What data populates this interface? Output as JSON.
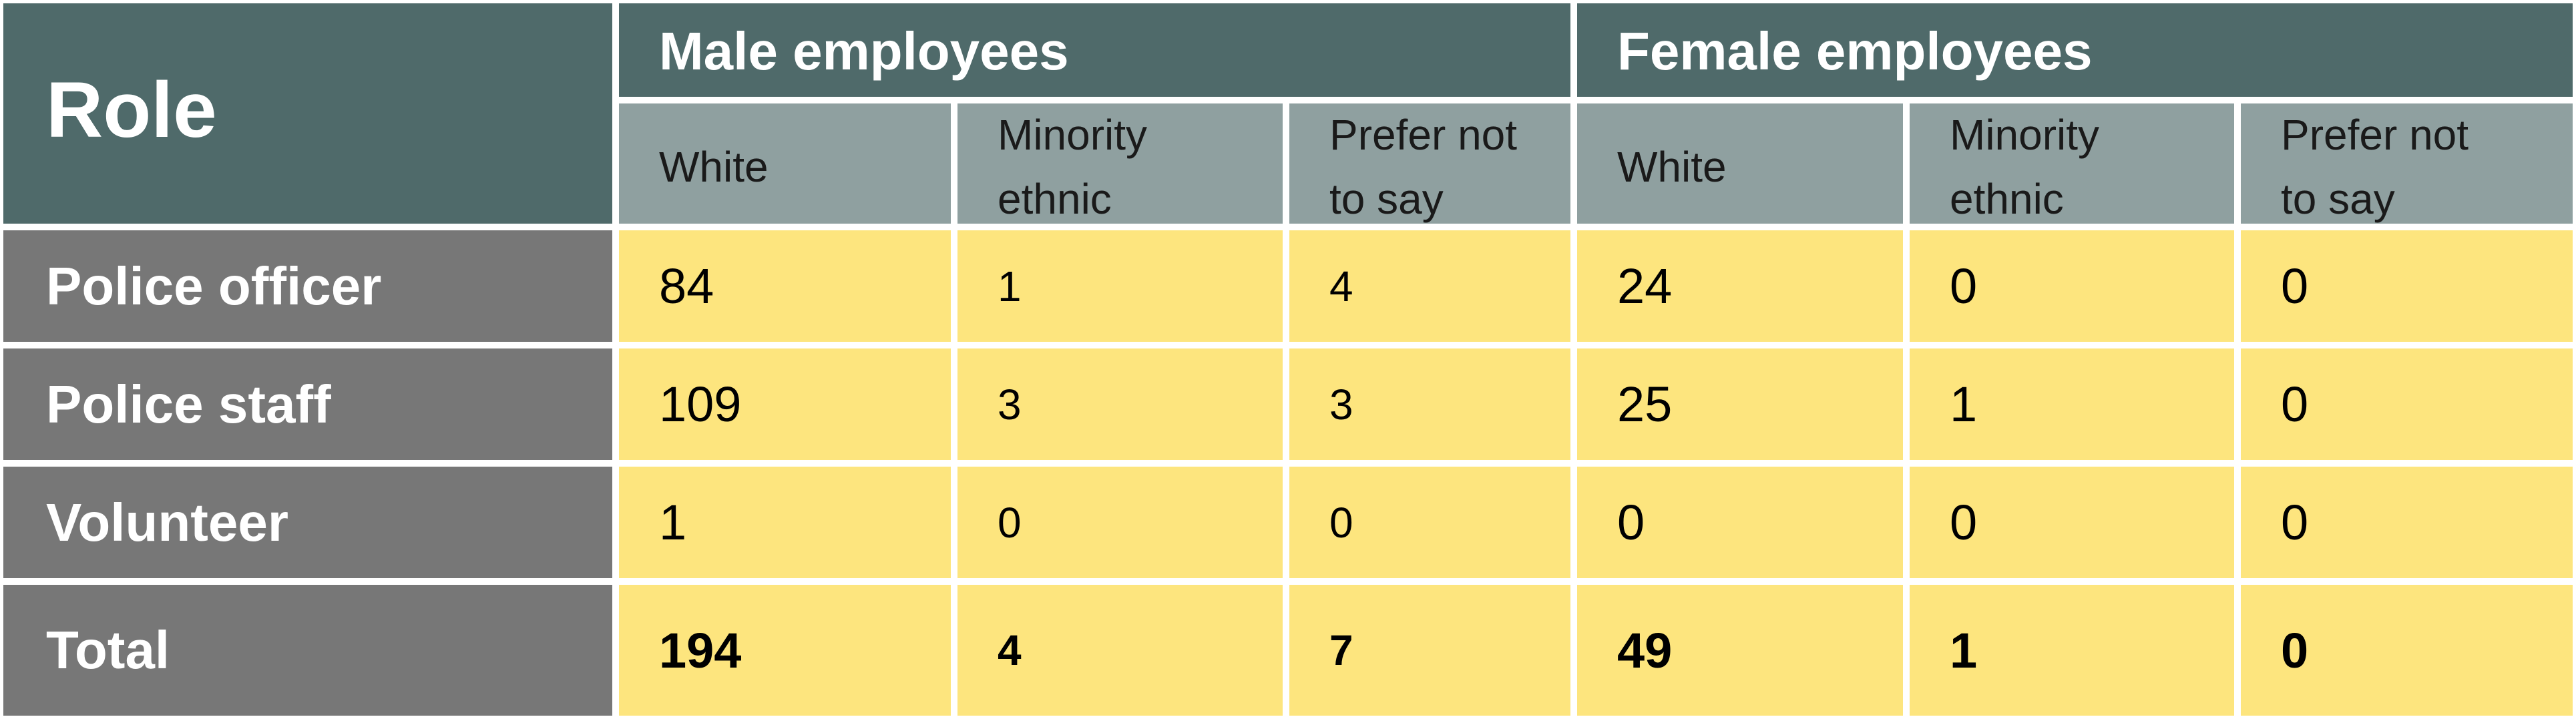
{
  "table": {
    "role_header": "Role",
    "group_headers": [
      "Male employees",
      "Female employees"
    ],
    "sub_headers": [
      "White",
      "Minority\nethnic",
      "Prefer not\nto say",
      "White",
      "Minority\nethnic",
      "Prefer not\nto say"
    ],
    "rows": [
      {
        "label": "Police officer",
        "values": [
          "84",
          "1",
          "4",
          "24",
          "0",
          "0"
        ]
      },
      {
        "label": "Police staff",
        "values": [
          "109",
          "3",
          "3",
          "25",
          "1",
          "0"
        ]
      },
      {
        "label": "Volunteer",
        "values": [
          "1",
          "0",
          "0",
          "0",
          "0",
          "0"
        ]
      },
      {
        "label": "Total",
        "values": [
          "194",
          "4",
          "7",
          "49",
          "1",
          "0"
        ]
      }
    ]
  },
  "chart_data": {
    "type": "table",
    "columns": [
      {
        "group": "Male employees",
        "name": "White"
      },
      {
        "group": "Male employees",
        "name": "Minority ethnic"
      },
      {
        "group": "Male employees",
        "name": "Prefer not to say"
      },
      {
        "group": "Female employees",
        "name": "White"
      },
      {
        "group": "Female employees",
        "name": "Minority ethnic"
      },
      {
        "group": "Female employees",
        "name": "Prefer not to say"
      }
    ],
    "rows": [
      {
        "role": "Police officer",
        "values": [
          84,
          1,
          4,
          24,
          0,
          0
        ]
      },
      {
        "role": "Police staff",
        "values": [
          109,
          3,
          3,
          25,
          1,
          0
        ]
      },
      {
        "role": "Volunteer",
        "values": [
          1,
          0,
          0,
          0,
          0,
          0
        ]
      },
      {
        "role": "Total",
        "values": [
          194,
          4,
          7,
          49,
          1,
          0
        ]
      }
    ]
  },
  "colors": {
    "header_dark": "#4f6a6a",
    "header_sub": "#8fa0a0",
    "row_label": "#777777",
    "value_fill": "#fde57e"
  }
}
